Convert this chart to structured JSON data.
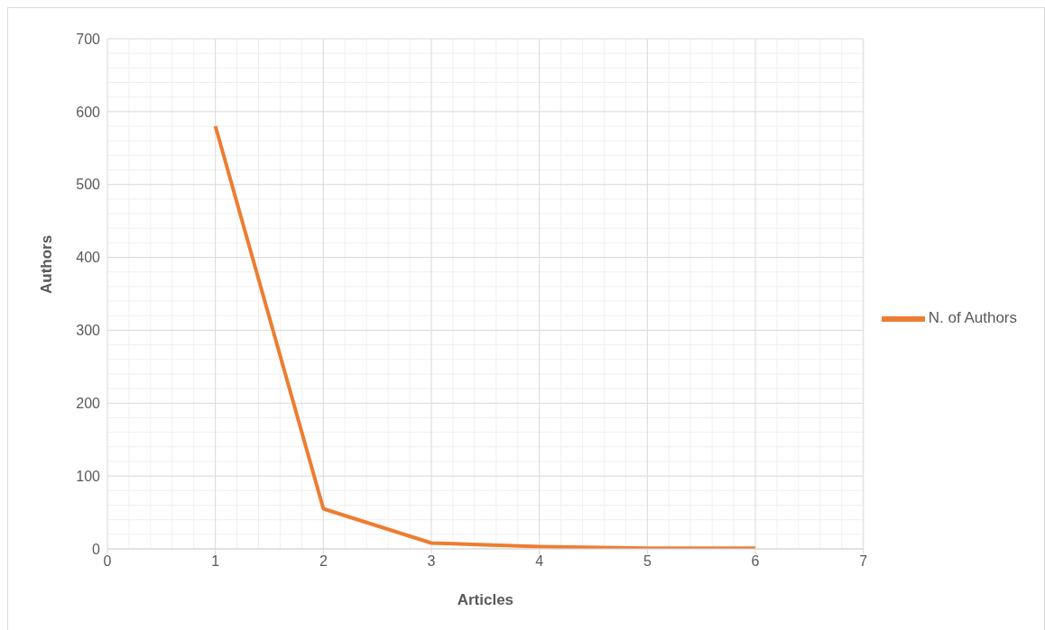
{
  "chart_data": {
    "type": "line",
    "xlabel": "Articles",
    "ylabel": "Authors",
    "x": [
      1,
      2,
      3,
      4,
      5,
      6
    ],
    "series": [
      {
        "name": "N. of Authors",
        "color": "#ed7d31",
        "values": [
          580,
          55,
          8,
          3,
          1,
          1
        ]
      }
    ],
    "xlim": [
      0,
      7
    ],
    "xticks": [
      0,
      1,
      2,
      3,
      4,
      5,
      6,
      7
    ],
    "ylim": [
      0,
      700
    ],
    "yticks": [
      0,
      100,
      200,
      300,
      400,
      500,
      600,
      700
    ],
    "grid": true,
    "legend": "right",
    "marker": "none",
    "line_style": "solid"
  }
}
